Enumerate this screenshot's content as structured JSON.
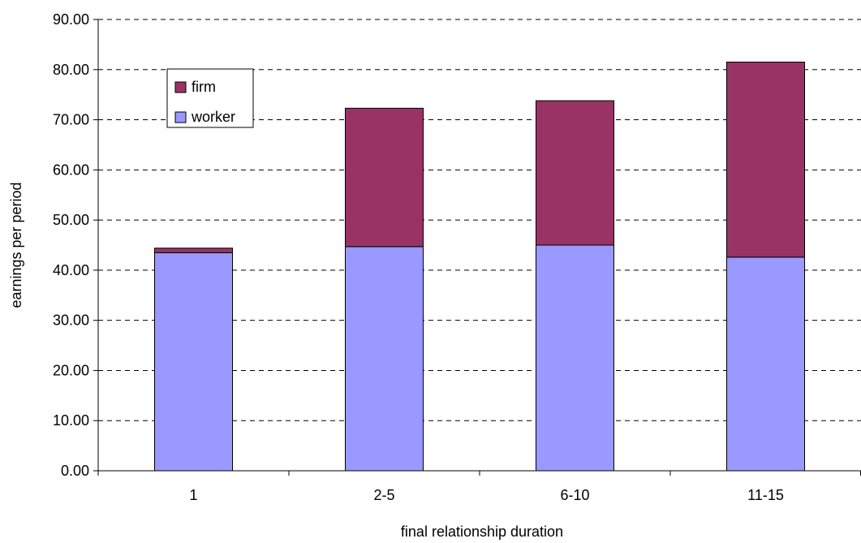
{
  "chart_data": {
    "type": "bar",
    "stacked": true,
    "categories": [
      "1",
      "2-5",
      "6-10",
      "11-15"
    ],
    "series": [
      {
        "name": "worker",
        "values": [
          43.5,
          44.7,
          45.0,
          42.6
        ],
        "color": "#9999ff"
      },
      {
        "name": "firm",
        "values": [
          0.9,
          27.6,
          28.8,
          38.9
        ],
        "color": "#993366"
      }
    ],
    "xlabel": "final relationship duration",
    "ylabel": "earnings per period",
    "ylim": [
      0,
      90
    ],
    "yticks": [
      "0.00",
      "10.00",
      "20.00",
      "30.00",
      "40.00",
      "50.00",
      "60.00",
      "70.00",
      "80.00",
      "90.00"
    ],
    "grid": true,
    "legend": {
      "position": "top-left",
      "entries": [
        "firm",
        "worker"
      ]
    }
  }
}
